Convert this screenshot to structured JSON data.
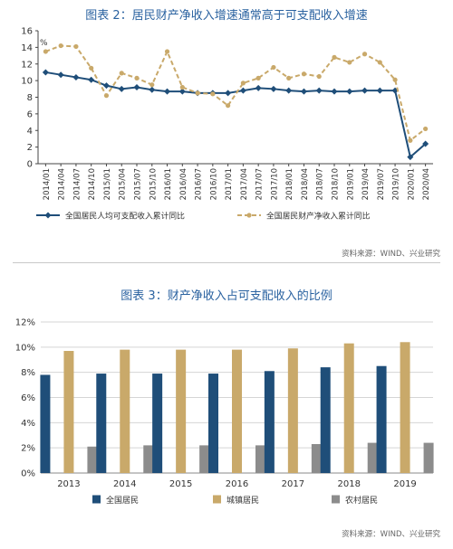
{
  "chart_data": [
    {
      "type": "line",
      "title": "图表 2：居民财产净收入增速通常高于可支配收入增速",
      "ylabel": "%",
      "ylim": [
        0,
        16
      ],
      "yticks": [
        0,
        2,
        4,
        6,
        8,
        10,
        12,
        14,
        16
      ],
      "grid": false,
      "legend": "bottom",
      "categories": [
        "2014/01",
        "2014/04",
        "2014/07",
        "2014/10",
        "2015/01",
        "2015/04",
        "2015/07",
        "2015/10",
        "2016/01",
        "2016/04",
        "2016/07",
        "2016/10",
        "2017/01",
        "2017/04",
        "2017/07",
        "2017/10",
        "2018/01",
        "2018/04",
        "2018/07",
        "2018/10",
        "2019/01",
        "2019/04",
        "2019/07",
        "2019/10",
        "2020/01",
        "2020/04"
      ],
      "labeled_categories": [
        "2014/01",
        "2014/04",
        "2014/07",
        "2014/10",
        "2015/01",
        "2015/04",
        "2015/07",
        "2015/10",
        "2016/01",
        "2016/04",
        "2016/07",
        "2016/10",
        "2017/01",
        "2017/04",
        "2017/07",
        "2017/10",
        "2018/01",
        "2018/04",
        "2018/07",
        "2018/10",
        "2019/01",
        "2019/04",
        "2019/07",
        "2019/10",
        "2020/01",
        "2020/04"
      ],
      "series": [
        {
          "name": "全国居民人均可支配收入累计同比",
          "color": "#1f4e79",
          "style": "solid",
          "marker": "diamond",
          "x": [
            "2014/01",
            "2014/04",
            "2014/07",
            "2014/10",
            "2015/01",
            "2015/04",
            "2015/07",
            "2015/10",
            "2016/01",
            "2016/04",
            "2016/07",
            "2016/10",
            "2017/01",
            "2017/04",
            "2017/07",
            "2017/10",
            "2018/01",
            "2018/04",
            "2018/07",
            "2018/10",
            "2019/01",
            "2019/04",
            "2019/07",
            "2019/10",
            "2020/01",
            "2020/04"
          ],
          "values": [
            11.0,
            10.7,
            10.4,
            10.1,
            9.4,
            9.0,
            9.2,
            8.9,
            8.7,
            8.7,
            8.5,
            8.5,
            8.5,
            8.8,
            9.1,
            9.0,
            8.8,
            8.7,
            8.8,
            8.7,
            8.7,
            8.8,
            8.8,
            8.8,
            0.8,
            2.4
          ]
        },
        {
          "name": "全国居民财产净收入累计同比",
          "color": "#c9a96a",
          "style": "dashed",
          "marker": "circle",
          "x": [
            "2014/01",
            "2014/04",
            "2014/07",
            "2014/10",
            "2015/01",
            "2015/04",
            "2015/07",
            "2015/10",
            "2016/01",
            "2016/04",
            "2016/07",
            "2016/10",
            "2017/01",
            "2017/04",
            "2017/07",
            "2017/10",
            "2018/01",
            "2018/04",
            "2018/07",
            "2018/10",
            "2019/01",
            "2019/04",
            "2019/07",
            "2019/10",
            "2020/01",
            "2020/04"
          ],
          "values": [
            13.5,
            14.2,
            14.1,
            11.5,
            8.2,
            10.9,
            10.3,
            9.5,
            13.5,
            9.2,
            8.5,
            8.4,
            7.0,
            9.7,
            10.3,
            11.6,
            10.3,
            10.8,
            10.5,
            12.8,
            12.2,
            13.2,
            12.2,
            10.1,
            2.8,
            4.2
          ]
        }
      ]
    },
    {
      "type": "bar",
      "title": "图表 3：财产净收入占可支配收入的比例",
      "ylim": [
        0,
        12
      ],
      "yticks": [
        "0%",
        "2%",
        "4%",
        "6%",
        "8%",
        "10%",
        "12%"
      ],
      "grid": true,
      "legend": "bottom",
      "categories": [
        "2013",
        "2014",
        "2015",
        "2016",
        "2017",
        "2018",
        "2019"
      ],
      "series": [
        {
          "name": "全国居民",
          "color": "#1f4e79",
          "values": [
            7.8,
            7.9,
            7.9,
            7.9,
            8.1,
            8.4,
            8.5
          ]
        },
        {
          "name": "城镇居民",
          "color": "#c9a96a",
          "values": [
            9.7,
            9.8,
            9.8,
            9.8,
            9.9,
            10.3,
            10.4
          ]
        },
        {
          "name": "农村居民",
          "color": "#8c8c8c",
          "values": [
            2.1,
            2.2,
            2.2,
            2.2,
            2.3,
            2.4,
            2.4
          ]
        }
      ]
    }
  ],
  "sources": [
    "资料来源：WIND、兴业研究",
    "资料来源：WIND、兴业研究"
  ]
}
